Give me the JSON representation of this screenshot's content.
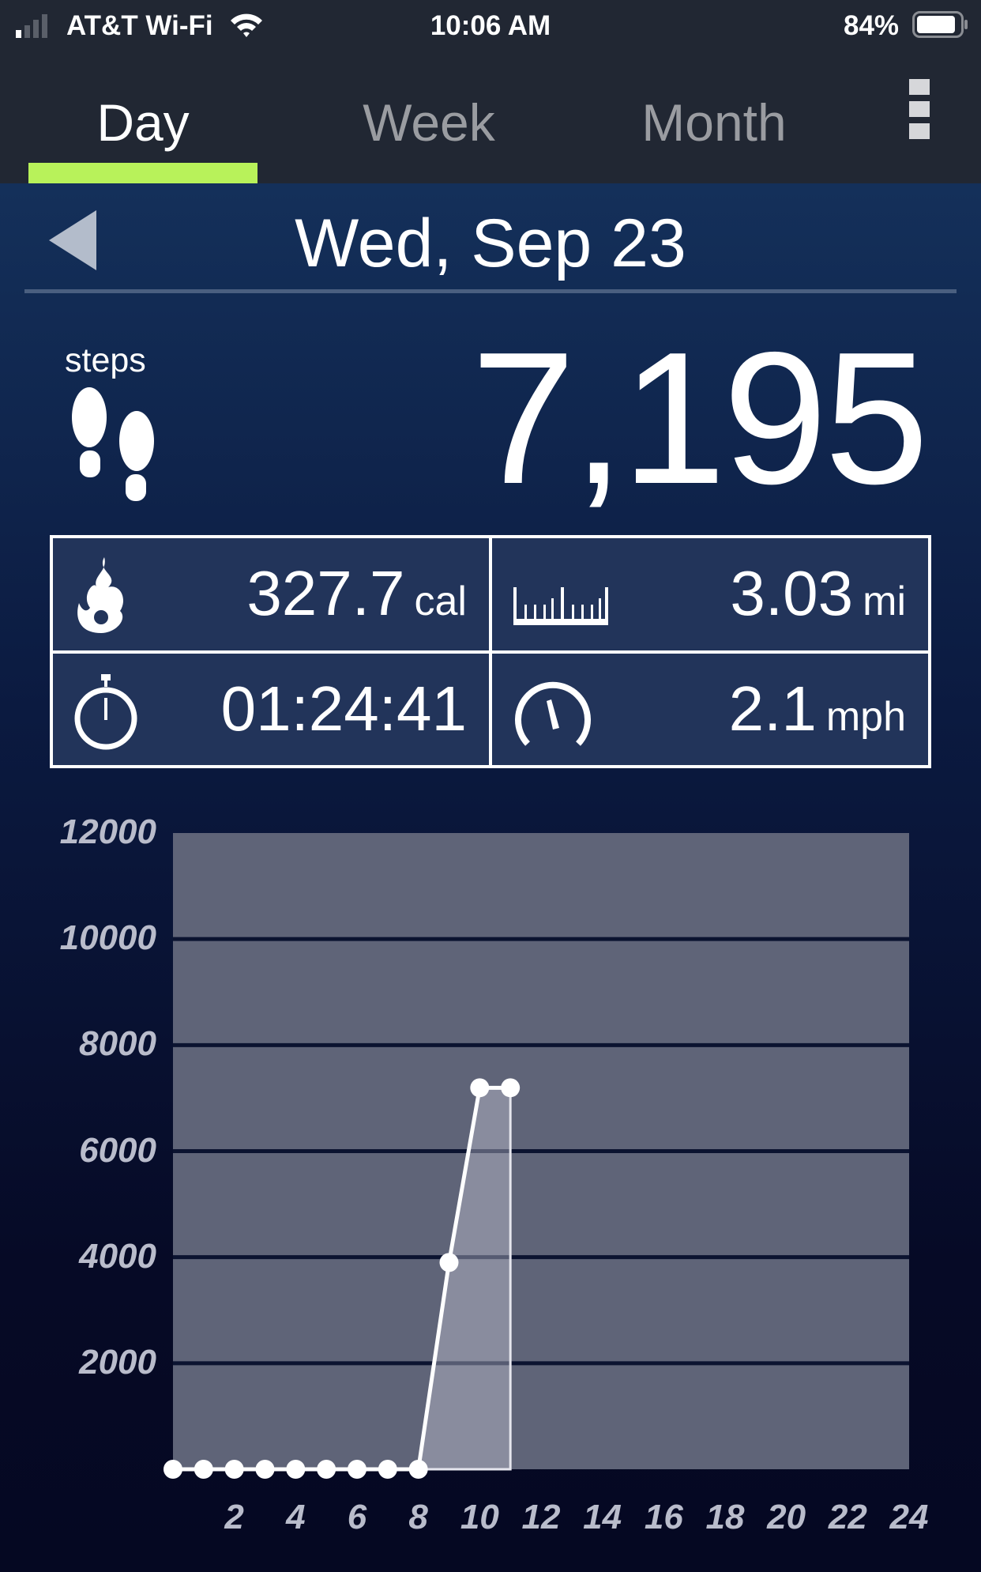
{
  "status_bar": {
    "carrier": "AT&T Wi-Fi",
    "time": "10:06 AM",
    "battery": "84%",
    "battery_level": 0.84
  },
  "tabs": [
    {
      "label": "Day",
      "active": true
    },
    {
      "label": "Week",
      "active": false
    },
    {
      "label": "Month",
      "active": false
    }
  ],
  "accent": "#b8f25a",
  "date_nav": {
    "date": "Wed, Sep 23"
  },
  "steps": {
    "label": "steps",
    "value": "7,195"
  },
  "stats": [
    {
      "icon": "flame-icon",
      "value": "327.7",
      "unit": "cal"
    },
    {
      "icon": "ruler-icon",
      "value": "3.03",
      "unit": "mi"
    },
    {
      "icon": "stopwatch-icon",
      "value": "01:24:41",
      "unit": ""
    },
    {
      "icon": "speedometer-icon",
      "value": "2.1",
      "unit": "mph"
    }
  ],
  "chart_data": {
    "type": "area",
    "x": [
      0,
      1,
      2,
      3,
      4,
      5,
      6,
      7,
      8,
      9,
      10,
      11
    ],
    "values": [
      0,
      0,
      0,
      0,
      0,
      0,
      0,
      0,
      0,
      3900,
      7195,
      7195
    ],
    "xlim": [
      0,
      24
    ],
    "ylim": [
      0,
      12000
    ],
    "x_ticks": [
      "2",
      "4",
      "6",
      "8",
      "10",
      "12",
      "14",
      "16",
      "18",
      "20",
      "22",
      "24"
    ],
    "y_ticks": [
      "12000",
      "10000",
      "8000",
      "6000",
      "4000",
      "2000"
    ],
    "grid": true
  }
}
